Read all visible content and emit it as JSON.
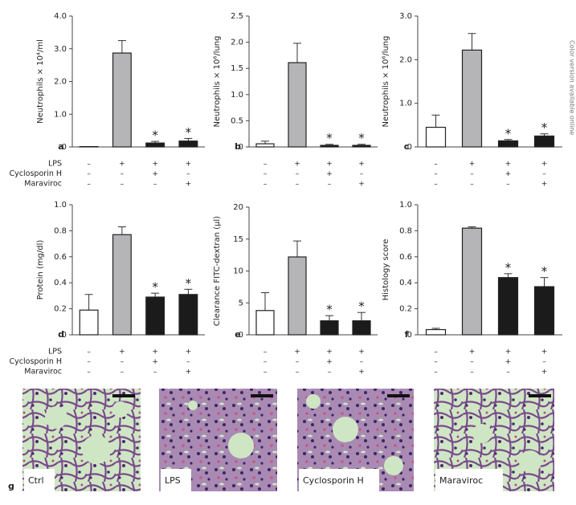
{
  "side_note": "Color version available online",
  "chart_data": [
    {
      "type": "bar",
      "panel": "a",
      "ylabel": "Neutrophils × 10⁴/ml",
      "row_labels": [
        "LPS",
        "Cyclosporin H",
        "Maraviroc"
      ],
      "conditions": [
        [
          "–",
          "+",
          "+",
          "+"
        ],
        [
          "–",
          "–",
          "+",
          "–"
        ],
        [
          "–",
          "–",
          "–",
          "+"
        ]
      ],
      "values": [
        0.01,
        2.87,
        0.12,
        0.18
      ],
      "errors": [
        0,
        0.38,
        0.05,
        0.08
      ],
      "colors": [
        "#ffffff",
        "#b5b5b7",
        "#1b1b1b",
        "#1b1b1b"
      ],
      "significance": [
        null,
        null,
        "*",
        "*"
      ],
      "ylim": [
        0,
        4
      ],
      "yticks": [
        0,
        {
          "value": 1,
          "label": "1.0"
        },
        {
          "value": 2,
          "label": "2.0"
        },
        {
          "value": 3,
          "label": "3.0"
        },
        {
          "value": 4,
          "label": "4.0"
        }
      ]
    },
    {
      "type": "bar",
      "panel": "b",
      "ylabel": "Neutrophils × 10⁶/lung",
      "conditions": [
        [
          "–",
          "+",
          "+",
          "+"
        ],
        [
          "–",
          "–",
          "+",
          "–"
        ],
        [
          "–",
          "–",
          "–",
          "+"
        ]
      ],
      "values": [
        0.06,
        1.61,
        0.03,
        0.03
      ],
      "errors": [
        0.05,
        0.37,
        0.02,
        0.02
      ],
      "colors": [
        "#ffffff",
        "#b5b5b7",
        "#1b1b1b",
        "#1b1b1b"
      ],
      "significance": [
        null,
        null,
        "*",
        "*"
      ],
      "ylim": [
        0,
        2.5
      ],
      "yticks": [
        0,
        0.5,
        {
          "value": 1,
          "label": "1.0"
        },
        1.5,
        {
          "value": 2,
          "label": "2.0"
        },
        2.5
      ]
    },
    {
      "type": "bar",
      "panel": "c",
      "ylabel": "Neutrophils × 10⁶/lung",
      "conditions": [
        [
          "–",
          "+",
          "+",
          "+"
        ],
        [
          "–",
          "–",
          "+",
          "–"
        ],
        [
          "–",
          "–",
          "–",
          "+"
        ]
      ],
      "values": [
        0.45,
        2.22,
        0.14,
        0.25
      ],
      "errors": [
        0.28,
        0.38,
        0.03,
        0.05
      ],
      "colors": [
        "#ffffff",
        "#b5b5b7",
        "#1b1b1b",
        "#1b1b1b"
      ],
      "significance": [
        null,
        null,
        "*",
        "*"
      ],
      "ylim": [
        0,
        3
      ],
      "yticks": [
        0,
        {
          "value": 1,
          "label": "1.0"
        },
        {
          "value": 2,
          "label": "2.0"
        },
        {
          "value": 3,
          "label": "3.0"
        }
      ]
    },
    {
      "type": "bar",
      "panel": "d",
      "ylabel": "Protein (mg/dl)",
      "row_labels": [
        "LPS",
        "Cyclosporin H",
        "Maraviroc"
      ],
      "conditions": [
        [
          "–",
          "+",
          "+",
          "+"
        ],
        [
          "–",
          "–",
          "+",
          "–"
        ],
        [
          "–",
          "–",
          "–",
          "+"
        ]
      ],
      "values": [
        0.19,
        0.77,
        0.29,
        0.31
      ],
      "errors": [
        0.12,
        0.06,
        0.03,
        0.04
      ],
      "colors": [
        "#ffffff",
        "#b5b5b7",
        "#1b1b1b",
        "#1b1b1b"
      ],
      "significance": [
        null,
        null,
        "*",
        "*"
      ],
      "ylim": [
        0,
        1
      ],
      "yticks": [
        0,
        0.2,
        0.4,
        0.6,
        0.8,
        {
          "value": 1,
          "label": "1.0"
        }
      ]
    },
    {
      "type": "bar",
      "panel": "e",
      "ylabel": "Clearance FITC-dextran (µl)",
      "conditions": [
        [
          "–",
          "+",
          "+",
          "+"
        ],
        [
          "–",
          "–",
          "+",
          "–"
        ],
        [
          "–",
          "–",
          "–",
          "+"
        ]
      ],
      "values": [
        3.8,
        12.2,
        2.2,
        2.2
      ],
      "errors": [
        2.8,
        2.5,
        0.8,
        1.3
      ],
      "colors": [
        "#ffffff",
        "#b5b5b7",
        "#1b1b1b",
        "#1b1b1b"
      ],
      "significance": [
        null,
        null,
        "*",
        "*"
      ],
      "ylim": [
        0,
        20
      ],
      "yticks": [
        0,
        5,
        10,
        15,
        20
      ]
    },
    {
      "type": "bar",
      "panel": "f",
      "ylabel": "Histology score",
      "conditions": [
        [
          "–",
          "+",
          "+",
          "+"
        ],
        [
          "–",
          "–",
          "+",
          "–"
        ],
        [
          "–",
          "–",
          "–",
          "+"
        ]
      ],
      "values": [
        0.04,
        0.82,
        0.44,
        0.37
      ],
      "errors": [
        0.01,
        0.01,
        0.03,
        0.07
      ],
      "colors": [
        "#ffffff",
        "#b5b5b7",
        "#1b1b1b",
        "#1b1b1b"
      ],
      "significance": [
        null,
        null,
        "*",
        "*"
      ],
      "ylim": [
        0,
        1
      ],
      "yticks": [
        0,
        0.2,
        0.4,
        0.6,
        0.8,
        {
          "value": 1,
          "label": "1.0"
        }
      ]
    }
  ],
  "histology": {
    "panel": "g",
    "labels": [
      "Ctrl",
      "LPS",
      "Cyclosporin H",
      "Maraviroc"
    ]
  }
}
